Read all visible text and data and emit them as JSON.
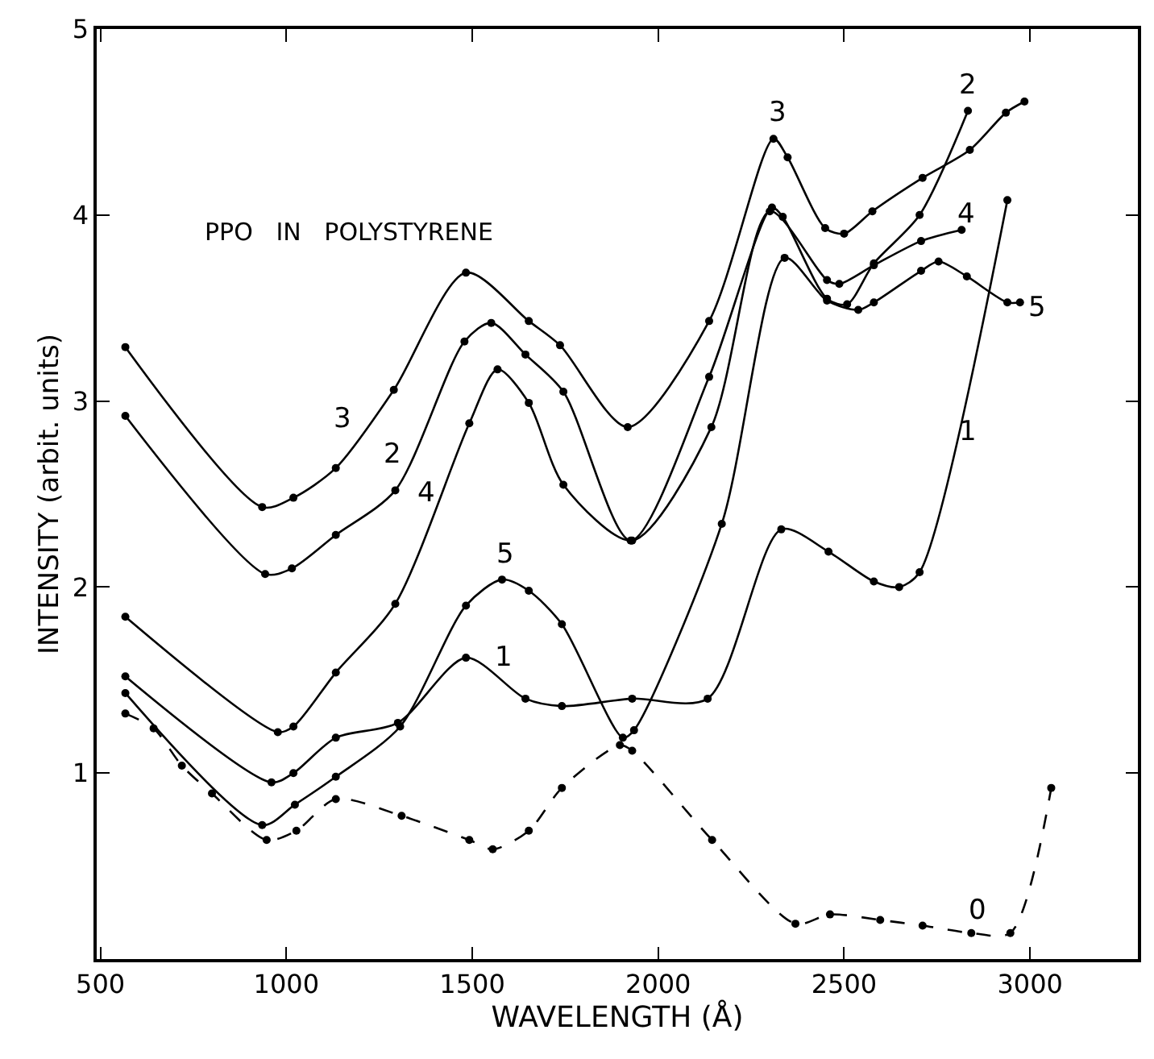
{
  "chart_data": {
    "type": "line",
    "xlabel": "WAVELENGTH (Å)",
    "ylabel": "INTENSITY (arbit. units)",
    "xlim": [
      490,
      3290
    ],
    "ylim": [
      0,
      5
    ],
    "xticks": [
      500,
      1000,
      1500,
      2000,
      2500,
      3000
    ],
    "yticks": [
      1,
      2,
      3,
      4,
      5
    ],
    "grid": false,
    "legend": false,
    "marker": "circle",
    "series": [
      {
        "name": "0",
        "color": "#000000",
        "line_style": "dashed",
        "x": [
          567,
          643,
          719,
          800,
          947,
          1027,
          1133,
          1310,
          1492,
          1555,
          1652,
          1741,
          1897,
          1930,
          2145,
          2369,
          2462,
          2597,
          2711,
          2842,
          2947,
          3057
        ],
        "values": [
          1.32,
          1.24,
          1.04,
          0.89,
          0.64,
          0.69,
          0.86,
          0.77,
          0.64,
          0.59,
          0.69,
          0.92,
          1.15,
          1.12,
          0.64,
          0.19,
          0.24,
          0.21,
          0.18,
          0.14,
          0.14,
          0.92
        ]
      },
      {
        "name": "1",
        "color": "#000000",
        "line_style": "solid",
        "x": [
          567,
          960,
          1019,
          1133,
          1300,
          1483,
          1643,
          1741,
          1930,
          2133,
          2331,
          2458,
          2580,
          2648,
          2703,
          2939
        ],
        "values": [
          1.52,
          0.95,
          1.0,
          1.19,
          1.27,
          1.62,
          1.4,
          1.36,
          1.4,
          1.4,
          2.31,
          2.19,
          2.03,
          2.0,
          2.08,
          4.08
        ]
      },
      {
        "name": "2",
        "color": "#000000",
        "line_style": "solid",
        "x": [
          567,
          943,
          1015,
          1133,
          1293,
          1479,
          1551,
          1643,
          1745,
          1926,
          2137,
          2306,
          2335,
          2454,
          2508,
          2580,
          2703,
          2833
        ],
        "values": [
          2.92,
          2.07,
          2.1,
          2.28,
          2.52,
          3.32,
          3.42,
          3.25,
          3.05,
          2.25,
          3.13,
          4.04,
          3.99,
          3.55,
          3.52,
          3.74,
          4.0,
          4.56
        ]
      },
      {
        "name": "3",
        "color": "#000000",
        "line_style": "solid",
        "x": [
          567,
          935,
          1019,
          1133,
          1289,
          1483,
          1652,
          1736,
          1918,
          2137,
          2310,
          2348,
          2449,
          2500,
          2576,
          2711,
          2838,
          2935,
          2985
        ],
        "values": [
          3.29,
          2.43,
          2.48,
          2.64,
          3.06,
          3.69,
          3.43,
          3.3,
          2.86,
          3.43,
          4.41,
          4.31,
          3.93,
          3.9,
          4.02,
          4.2,
          4.35,
          4.55,
          4.61
        ]
      },
      {
        "name": "4",
        "color": "#000000",
        "line_style": "solid",
        "x": [
          567,
          977,
          1019,
          1133,
          1293,
          1492,
          1568,
          1652,
          1745,
          1930,
          2143,
          2300,
          2454,
          2487,
          2580,
          2707,
          2816
        ],
        "values": [
          1.84,
          1.22,
          1.25,
          1.54,
          1.91,
          2.88,
          3.17,
          2.99,
          2.55,
          2.25,
          2.86,
          4.02,
          3.65,
          3.63,
          3.73,
          3.86,
          3.92
        ]
      },
      {
        "name": "5",
        "color": "#000000",
        "line_style": "solid",
        "x": [
          567,
          935,
          1023,
          1133,
          1306,
          1483,
          1580,
          1652,
          1741,
          1905,
          1935,
          2171,
          2340,
          2454,
          2538,
          2580,
          2707,
          2754,
          2830,
          2939,
          2973
        ],
        "values": [
          1.43,
          0.72,
          0.83,
          0.98,
          1.25,
          1.9,
          2.04,
          1.98,
          1.8,
          1.19,
          1.23,
          2.34,
          3.77,
          3.54,
          3.49,
          3.53,
          3.7,
          3.75,
          3.67,
          3.53,
          3.53
        ]
      }
    ],
    "annotations": [
      "PPO   IN   POLYSTYRENE"
    ]
  }
}
